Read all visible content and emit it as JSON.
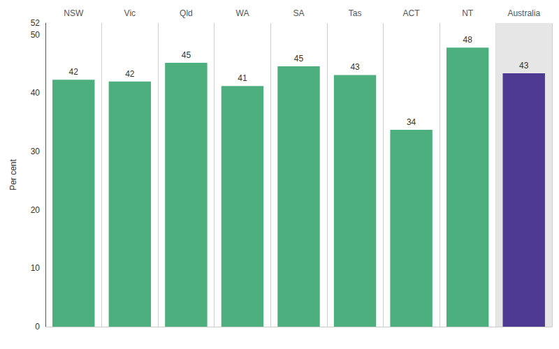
{
  "chart_data": {
    "type": "bar",
    "categories": [
      "NSW",
      "Vic",
      "Qld",
      "WA",
      "SA",
      "Tas",
      "ACT",
      "NT",
      "Australia"
    ],
    "values": [
      42.3,
      42.0,
      45.2,
      41.2,
      44.6,
      43.1,
      33.7,
      47.8,
      43.4
    ],
    "value_labels": [
      "42",
      "42",
      "45",
      "41",
      "45",
      "43",
      "34",
      "48",
      "43"
    ],
    "colors": [
      "#4caf7d",
      "#4caf7d",
      "#4caf7d",
      "#4caf7d",
      "#4caf7d",
      "#4caf7d",
      "#4caf7d",
      "#4caf7d",
      "#4f3a93"
    ],
    "y_label": "Per cent",
    "ylim": [
      0,
      52
    ],
    "yticks": [
      0,
      10,
      20,
      30,
      40,
      50
    ],
    "grid": false,
    "data_labels": true
  }
}
